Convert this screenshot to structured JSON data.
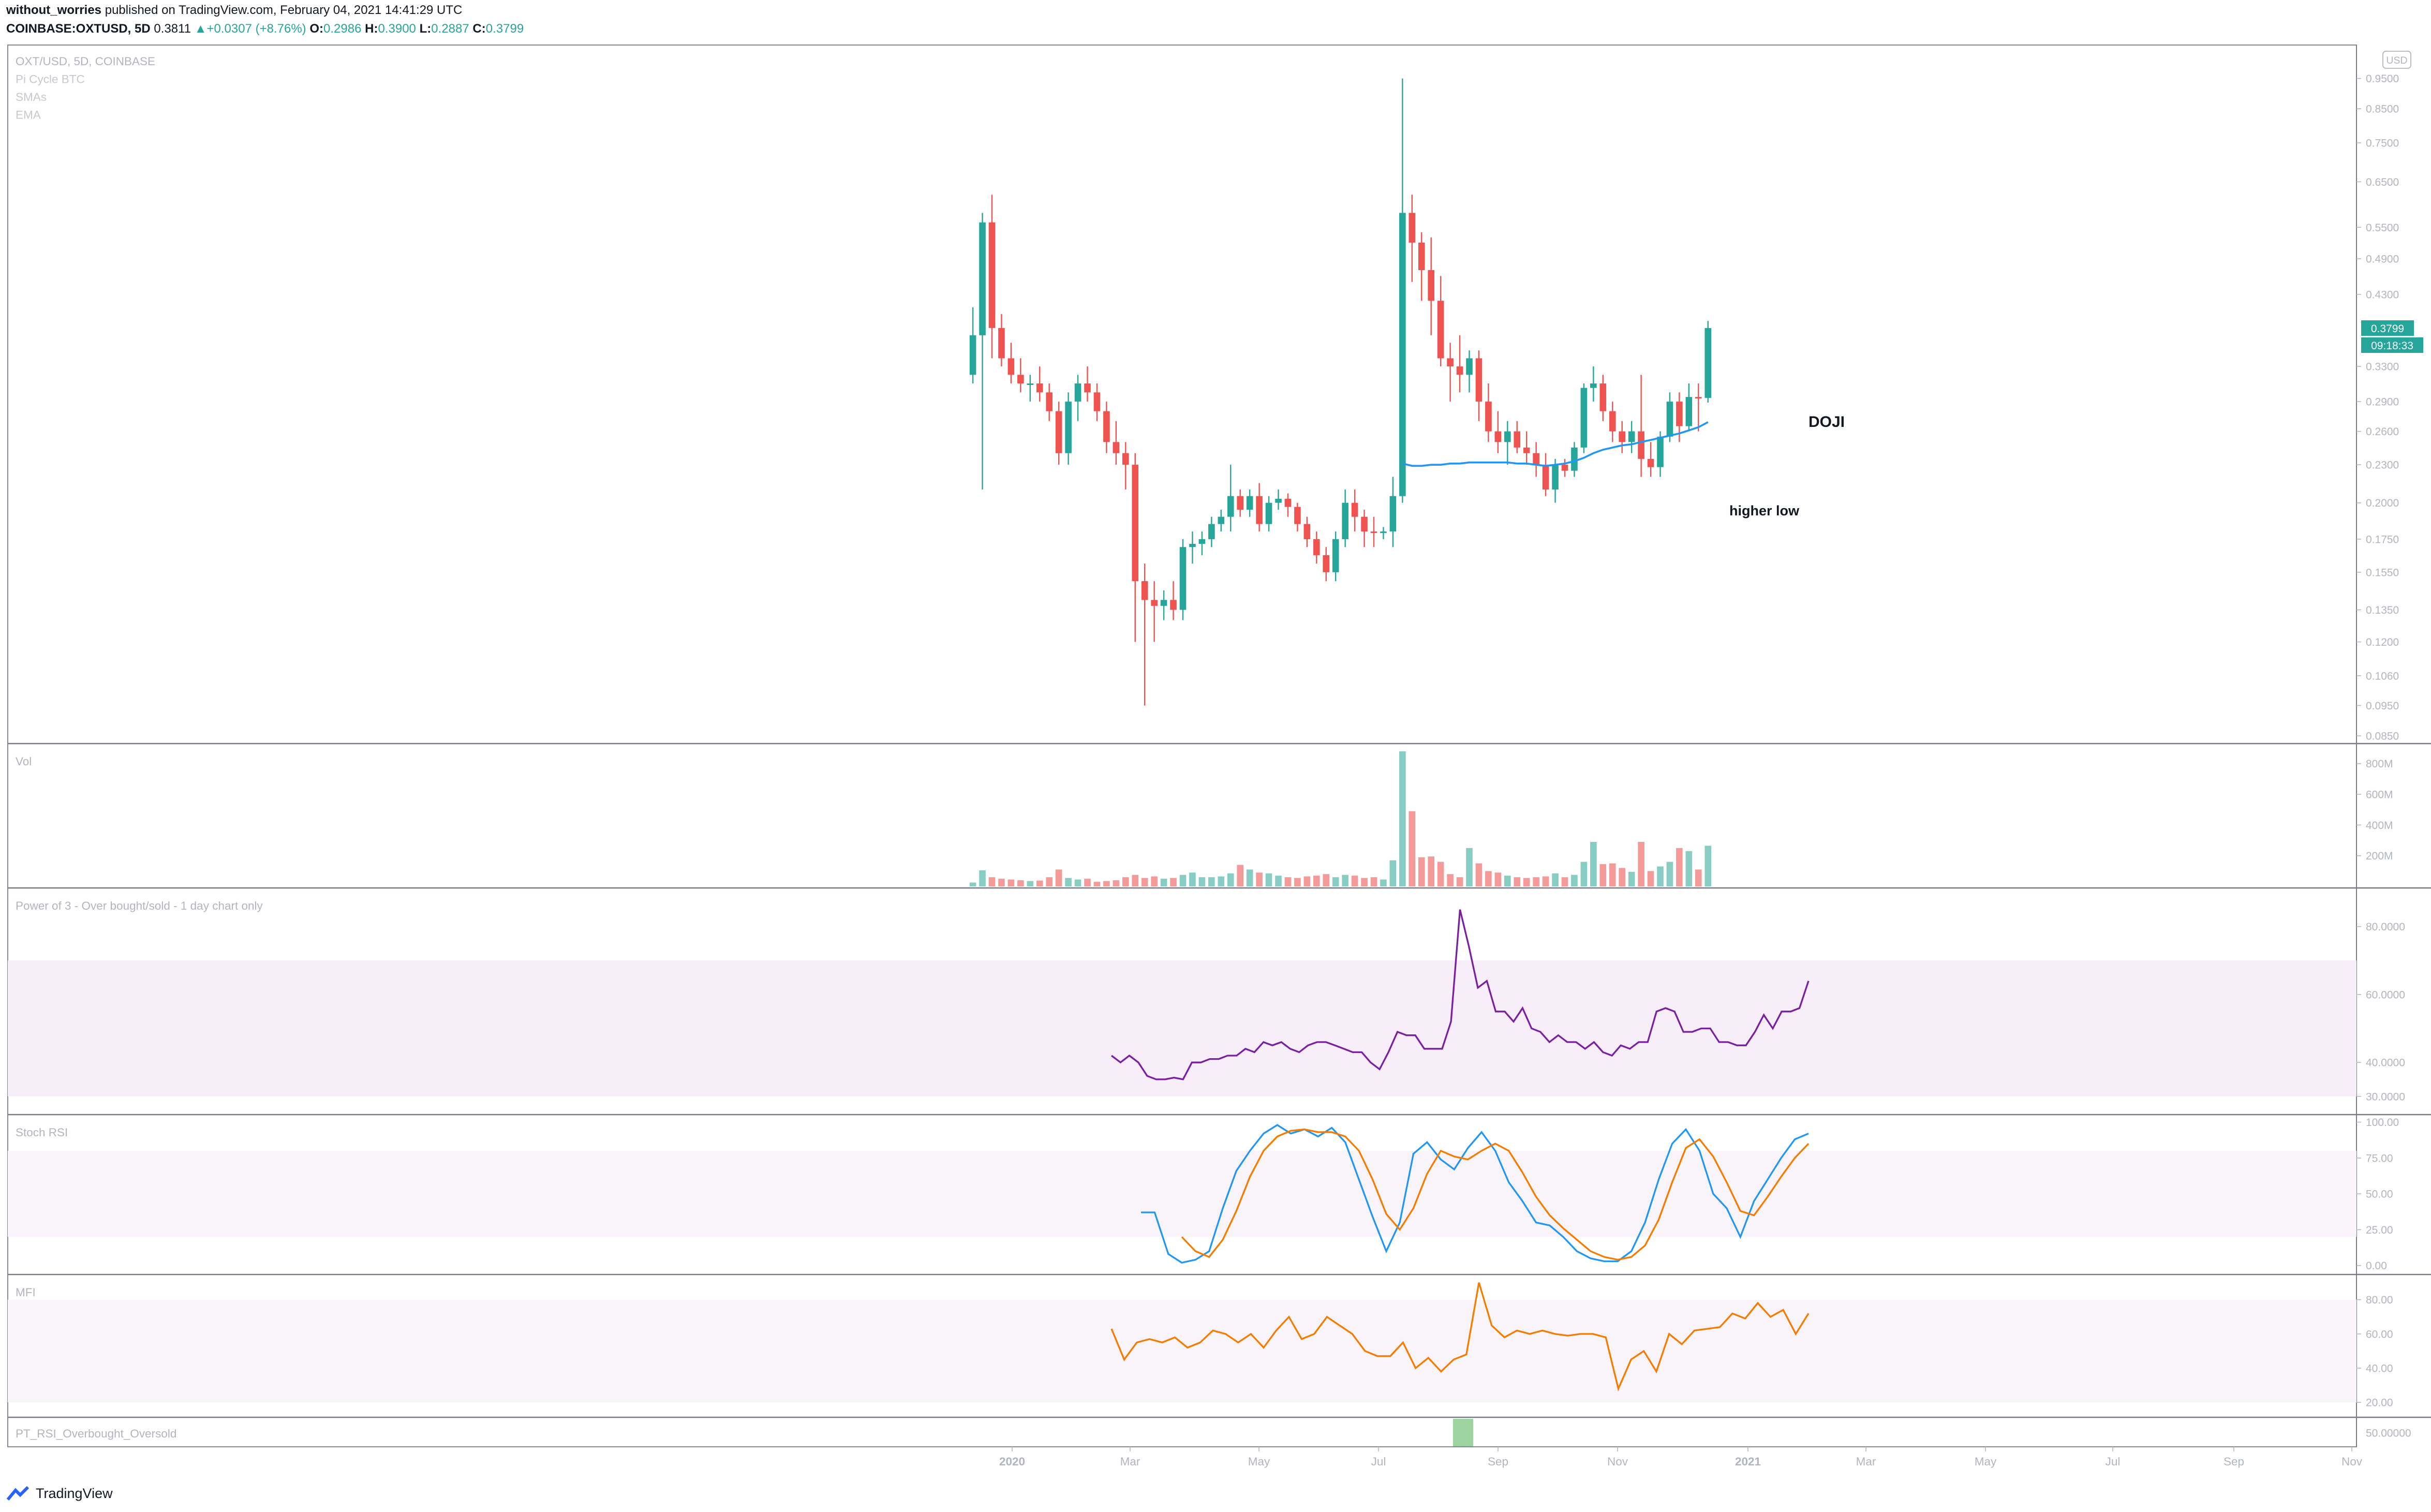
{
  "header": {
    "author": "without_worries",
    "published_text": "published on TradingView.com, February 04, 2021 14:41:29 UTC",
    "symbol": "COINBASE:OXTUSD, 5D",
    "last": "0.3811",
    "change_arrow": "▲",
    "change": "+0.0307 (+8.76%)",
    "o_label": "O:",
    "o_value": "0.2986",
    "h_label": "H:",
    "h_value": "0.3900",
    "l_label": "L:",
    "l_value": "0.2887",
    "c_label": "C:",
    "c_value": "0.3799"
  },
  "footer": {
    "brand": "TradingView",
    "logo_icon": "tradingview-logo-icon"
  },
  "colors": {
    "up": "#26a69a",
    "down": "#ef5350",
    "up_vol": "#87cdc4",
    "down_vol": "#f49b9a",
    "ema": "#2196f3",
    "power": "#7b1fa2",
    "stoch_k": "#2196f3",
    "stoch_d": "#f57c00",
    "mfi": "#f57c00",
    "pt_bar": "#4caf50"
  },
  "chart_data": [
    {
      "type": "candlestick",
      "name": "price",
      "pane_labels": [
        "OXT/USD, 5D, COINBASE",
        "Pi Cycle BTC",
        "SMAs",
        "EMA"
      ],
      "scale": "log",
      "ylim": [
        0.085,
        1.05
      ],
      "currency_label": "USD",
      "yticks": [
        0.085,
        0.095,
        0.106,
        0.12,
        0.135,
        0.155,
        0.175,
        0.2,
        0.23,
        0.26,
        0.29,
        0.33,
        0.38,
        0.43,
        0.49,
        0.55,
        0.65,
        0.75,
        0.85,
        0.95
      ],
      "ytick_labels": [
        "0.0850",
        "0.0950",
        "0.1060",
        "0.1200",
        "0.1350",
        "0.1550",
        "0.1750",
        "0.2000",
        "0.2300",
        "0.2600",
        "0.2900",
        "0.3300",
        "",
        "0.4300",
        "0.4900",
        "0.5500",
        "0.6500",
        "0.7500",
        "0.8500",
        "0.9500"
      ],
      "last_price_label": "0.3799",
      "countdown_label": "09:18:33",
      "ohlc": [
        [
          0.32,
          0.41,
          0.31,
          0.37
        ],
        [
          0.37,
          0.58,
          0.21,
          0.56
        ],
        [
          0.56,
          0.62,
          0.34,
          0.38
        ],
        [
          0.38,
          0.4,
          0.33,
          0.34
        ],
        [
          0.34,
          0.36,
          0.31,
          0.32
        ],
        [
          0.32,
          0.34,
          0.3,
          0.31
        ],
        [
          0.31,
          0.32,
          0.29,
          0.31
        ],
        [
          0.31,
          0.33,
          0.29,
          0.3
        ],
        [
          0.3,
          0.31,
          0.27,
          0.28
        ],
        [
          0.28,
          0.29,
          0.23,
          0.24
        ],
        [
          0.24,
          0.3,
          0.23,
          0.29
        ],
        [
          0.29,
          0.32,
          0.27,
          0.31
        ],
        [
          0.31,
          0.33,
          0.29,
          0.3
        ],
        [
          0.3,
          0.31,
          0.27,
          0.28
        ],
        [
          0.28,
          0.29,
          0.24,
          0.25
        ],
        [
          0.25,
          0.27,
          0.23,
          0.24
        ],
        [
          0.24,
          0.25,
          0.21,
          0.23
        ],
        [
          0.23,
          0.24,
          0.12,
          0.15
        ],
        [
          0.15,
          0.16,
          0.095,
          0.14
        ],
        [
          0.14,
          0.15,
          0.12,
          0.137
        ],
        [
          0.137,
          0.145,
          0.13,
          0.14
        ],
        [
          0.14,
          0.15,
          0.13,
          0.135
        ],
        [
          0.135,
          0.175,
          0.13,
          0.17
        ],
        [
          0.17,
          0.18,
          0.16,
          0.172
        ],
        [
          0.172,
          0.18,
          0.165,
          0.175
        ],
        [
          0.175,
          0.19,
          0.17,
          0.185
        ],
        [
          0.185,
          0.195,
          0.18,
          0.19
        ],
        [
          0.19,
          0.23,
          0.18,
          0.205
        ],
        [
          0.205,
          0.21,
          0.19,
          0.195
        ],
        [
          0.195,
          0.21,
          0.19,
          0.205
        ],
        [
          0.205,
          0.215,
          0.18,
          0.185
        ],
        [
          0.185,
          0.205,
          0.18,
          0.2
        ],
        [
          0.2,
          0.21,
          0.195,
          0.203
        ],
        [
          0.203,
          0.207,
          0.19,
          0.197
        ],
        [
          0.197,
          0.2,
          0.18,
          0.185
        ],
        [
          0.185,
          0.19,
          0.17,
          0.175
        ],
        [
          0.175,
          0.18,
          0.16,
          0.165
        ],
        [
          0.165,
          0.17,
          0.15,
          0.155
        ],
        [
          0.155,
          0.18,
          0.15,
          0.175
        ],
        [
          0.175,
          0.21,
          0.17,
          0.2
        ],
        [
          0.2,
          0.21,
          0.18,
          0.19
        ],
        [
          0.19,
          0.195,
          0.17,
          0.18
        ],
        [
          0.18,
          0.19,
          0.17,
          0.179
        ],
        [
          0.179,
          0.183,
          0.175,
          0.18
        ],
        [
          0.18,
          0.22,
          0.17,
          0.205
        ],
        [
          0.205,
          0.95,
          0.2,
          0.58
        ],
        [
          0.58,
          0.62,
          0.45,
          0.52
        ],
        [
          0.52,
          0.54,
          0.42,
          0.47
        ],
        [
          0.47,
          0.53,
          0.37,
          0.42
        ],
        [
          0.42,
          0.46,
          0.33,
          0.34
        ],
        [
          0.34,
          0.36,
          0.29,
          0.33
        ],
        [
          0.33,
          0.37,
          0.3,
          0.32
        ],
        [
          0.32,
          0.35,
          0.3,
          0.34
        ],
        [
          0.34,
          0.35,
          0.27,
          0.29
        ],
        [
          0.29,
          0.31,
          0.25,
          0.26
        ],
        [
          0.26,
          0.28,
          0.24,
          0.25
        ],
        [
          0.25,
          0.27,
          0.23,
          0.26
        ],
        [
          0.26,
          0.27,
          0.24,
          0.245
        ],
        [
          0.245,
          0.26,
          0.23,
          0.24
        ],
        [
          0.24,
          0.25,
          0.22,
          0.23
        ],
        [
          0.23,
          0.24,
          0.205,
          0.21
        ],
        [
          0.21,
          0.235,
          0.2,
          0.23
        ],
        [
          0.23,
          0.235,
          0.22,
          0.225
        ],
        [
          0.225,
          0.25,
          0.22,
          0.245
        ],
        [
          0.245,
          0.31,
          0.24,
          0.305
        ],
        [
          0.305,
          0.33,
          0.29,
          0.31
        ],
        [
          0.31,
          0.32,
          0.27,
          0.28
        ],
        [
          0.28,
          0.29,
          0.25,
          0.26
        ],
        [
          0.26,
          0.27,
          0.24,
          0.25
        ],
        [
          0.25,
          0.27,
          0.24,
          0.26
        ],
        [
          0.26,
          0.32,
          0.22,
          0.235
        ],
        [
          0.235,
          0.25,
          0.22,
          0.228
        ],
        [
          0.228,
          0.26,
          0.22,
          0.255
        ],
        [
          0.255,
          0.3,
          0.25,
          0.29
        ],
        [
          0.29,
          0.3,
          0.25,
          0.265
        ],
        [
          0.265,
          0.31,
          0.26,
          0.295
        ],
        [
          0.295,
          0.31,
          0.26,
          0.294
        ],
        [
          0.294,
          0.39,
          0.289,
          0.3799
        ]
      ],
      "ema_values": [
        0.231,
        0.229,
        0.229,
        0.23,
        0.23,
        0.231,
        0.231,
        0.232,
        0.232,
        0.232,
        0.232,
        0.232,
        0.231,
        0.231,
        0.23,
        0.229,
        0.23,
        0.231,
        0.233,
        0.236,
        0.24,
        0.243,
        0.245,
        0.247,
        0.248,
        0.25,
        0.252,
        0.254,
        0.256,
        0.258,
        0.261,
        0.264,
        0.269
      ],
      "annotations": [
        "DOJI",
        "higher low"
      ]
    },
    {
      "type": "bar",
      "name": "volume",
      "pane_label": "Vol",
      "ylim": [
        0,
        880
      ],
      "yticks": [
        200,
        400,
        600,
        800
      ],
      "ytick_labels": [
        "200M",
        "400M",
        "600M",
        "800M"
      ],
      "values": [
        25,
        105,
        60,
        50,
        45,
        40,
        35,
        38,
        60,
        110,
        55,
        45,
        50,
        30,
        35,
        40,
        60,
        75,
        55,
        65,
        50,
        55,
        75,
        90,
        60,
        60,
        65,
        85,
        140,
        110,
        90,
        85,
        70,
        60,
        55,
        65,
        70,
        80,
        60,
        75,
        70,
        55,
        60,
        45,
        170,
        880,
        490,
        190,
        195,
        160,
        80,
        60,
        250,
        150,
        100,
        90,
        70,
        60,
        55,
        60,
        65,
        85,
        60,
        75,
        160,
        290,
        145,
        150,
        120,
        95,
        290,
        100,
        130,
        160,
        250,
        230,
        110,
        265
      ]
    },
    {
      "type": "line",
      "name": "power",
      "pane_label": "Power of 3 - Over bought/sold - 1 day chart only",
      "ylim": [
        26,
        90
      ],
      "band": [
        30,
        70
      ],
      "yticks": [
        30,
        40,
        60,
        80
      ],
      "ytick_labels": [
        "30.0000",
        "40.0000",
        "60.0000",
        "80.0000"
      ],
      "values": [
        42,
        40,
        42,
        40,
        36,
        35,
        35,
        35.5,
        35,
        40,
        40,
        41,
        41,
        42,
        42,
        44,
        43,
        46,
        45,
        46,
        44,
        43,
        45,
        46,
        46,
        45,
        44,
        43,
        43,
        40,
        38,
        43,
        49,
        48,
        48,
        44,
        44,
        44,
        52,
        85,
        74,
        62,
        64,
        55,
        55,
        52,
        56,
        50,
        49,
        46,
        48,
        46,
        46,
        44,
        46,
        43,
        42,
        45,
        44,
        46,
        46,
        55,
        56,
        55,
        49,
        49,
        50,
        50,
        46,
        46,
        45,
        45,
        49,
        54,
        50,
        55,
        55,
        56,
        64
      ]
    },
    {
      "type": "line",
      "name": "stoch_rsi",
      "pane_label": "Stoch RSI",
      "ylim": [
        -3,
        102
      ],
      "band": [
        20,
        80
      ],
      "yticks": [
        0,
        25,
        50,
        75,
        100
      ],
      "ytick_labels": [
        "0.00",
        "25.00",
        "50.00",
        "75.00",
        "100.00"
      ],
      "series": [
        {
          "name": "K",
          "values": [
            37,
            37,
            8,
            2,
            4,
            10,
            40,
            66,
            80,
            92,
            98,
            92,
            95,
            90,
            96,
            86,
            60,
            34,
            10,
            30,
            78,
            86,
            74,
            67,
            82,
            93,
            80,
            58,
            45,
            30,
            28,
            20,
            10,
            5,
            3,
            3,
            10,
            30,
            60,
            85,
            95,
            80,
            50,
            40,
            20,
            45,
            60,
            75,
            88,
            92
          ]
        },
        {
          "name": "D",
          "values": [
            null,
            null,
            null,
            20,
            10,
            6,
            18,
            38,
            62,
            80,
            90,
            94,
            95,
            93,
            93,
            90,
            80,
            60,
            36,
            25,
            40,
            64,
            80,
            76,
            74,
            80,
            85,
            80,
            65,
            48,
            35,
            26,
            18,
            10,
            6,
            4,
            6,
            14,
            32,
            58,
            82,
            88,
            76,
            58,
            38,
            35,
            48,
            62,
            75,
            85
          ]
        }
      ]
    },
    {
      "type": "line",
      "name": "mfi",
      "pane_label": "MFI",
      "ylim": [
        14,
        92
      ],
      "band": [
        20,
        80
      ],
      "yticks": [
        20,
        40,
        60,
        80
      ],
      "ytick_labels": [
        "20.00",
        "40.00",
        "60.00",
        "80.00"
      ],
      "values": [
        63,
        45,
        55,
        57,
        55,
        58,
        52,
        55,
        62,
        60,
        55,
        60,
        52,
        62,
        70,
        57,
        60,
        70,
        65,
        60,
        50,
        47,
        47,
        55,
        40,
        46,
        38,
        45,
        48,
        90,
        65,
        58,
        62,
        60,
        62,
        60,
        59,
        60,
        60,
        58,
        28,
        45,
        50,
        38,
        60,
        54,
        62,
        63,
        64,
        72,
        69,
        78,
        70,
        74,
        60,
        72
      ]
    },
    {
      "type": "bar",
      "name": "pt_rsi",
      "pane_label": "PT_RSI_Overbought_Oversold",
      "ytick_labels": [
        "50.00000"
      ]
    }
  ],
  "time_axis": {
    "labels": [
      "2020",
      "Mar",
      "May",
      "Jul",
      "Sep",
      "Nov",
      "2021",
      "Mar",
      "May",
      "Jul",
      "Sep",
      "Nov"
    ]
  }
}
